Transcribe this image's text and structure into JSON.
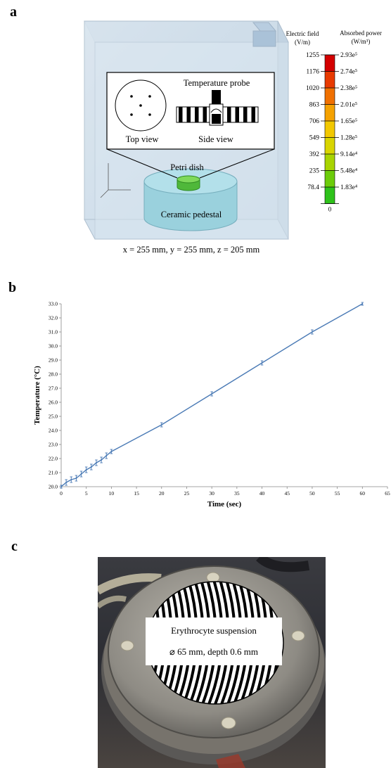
{
  "panel_a": {
    "letter": "a",
    "top_view_label": "Top view",
    "side_view_label": "Side view",
    "probe_label": "Temperature probe",
    "dish_label": "Petri dish",
    "pedestal_label": "Ceramic pedestal",
    "dimensions": "x = 255 mm, y = 255 mm, z = 205 mm",
    "colorbar": {
      "e_title": [
        "Electric field",
        "(V/m)"
      ],
      "p_title": [
        "Absorbed power",
        "(W/m³)"
      ],
      "rows": [
        {
          "e": "1255",
          "p": "2.93e⁵"
        },
        {
          "e": "1176",
          "p": "2.74e⁵"
        },
        {
          "e": "1020",
          "p": "2.38e⁵"
        },
        {
          "e": "863",
          "p": "2.01e⁵"
        },
        {
          "e": "706",
          "p": "1.65e⁵"
        },
        {
          "e": "549",
          "p": "1.28e⁵"
        },
        {
          "e": "392",
          "p": "9.14e⁴"
        },
        {
          "e": "235",
          "p": "5.48e⁴"
        },
        {
          "e": "78.4",
          "p": "1.83e⁴"
        }
      ],
      "zero": "0",
      "colors": [
        "#d40000",
        "#e83a00",
        "#f07000",
        "#f5a200",
        "#f2c800",
        "#d9d500",
        "#a8d400",
        "#6ccc0a",
        "#2ec21a"
      ]
    }
  },
  "panel_b": {
    "letter": "b",
    "chart_data": {
      "type": "line",
      "x": [
        0,
        1,
        2,
        3,
        4,
        5,
        6,
        7,
        8,
        9,
        10,
        20,
        30,
        40,
        50,
        60
      ],
      "series": [
        {
          "values": [
            20.0,
            20.3,
            20.5,
            20.6,
            20.9,
            21.2,
            21.4,
            21.7,
            21.9,
            22.2,
            22.5,
            24.4,
            26.6,
            28.8,
            31.0,
            33.0
          ]
        }
      ],
      "error": [
        0.1,
        0.2,
        0.2,
        0.2,
        0.2,
        0.2,
        0.2,
        0.2,
        0.2,
        0.2,
        0.15,
        0.15,
        0.15,
        0.15,
        0.15,
        0.1
      ],
      "xlabel": "Time (sec)",
      "ylabel": "Temperature (°C)",
      "xlim": [
        0,
        65
      ],
      "ylim": [
        20,
        33
      ],
      "xticks": [
        "0",
        "5",
        "10",
        "15",
        "20",
        "25",
        "30",
        "35",
        "40",
        "45",
        "50",
        "55",
        "60",
        "65"
      ],
      "yticks": [
        "20.0",
        "21.0",
        "22.0",
        "23.0",
        "24.0",
        "25.0",
        "26.0",
        "27.0",
        "28.0",
        "29.0",
        "30.0",
        "31.0",
        "32.0",
        "33.0"
      ],
      "grid": false,
      "line_color": "#4a7ab5"
    }
  },
  "panel_c": {
    "letter": "c",
    "label_line1": "Erythrocyte suspension",
    "label_line2": "⌀ 65 mm, depth 0.6 mm"
  }
}
